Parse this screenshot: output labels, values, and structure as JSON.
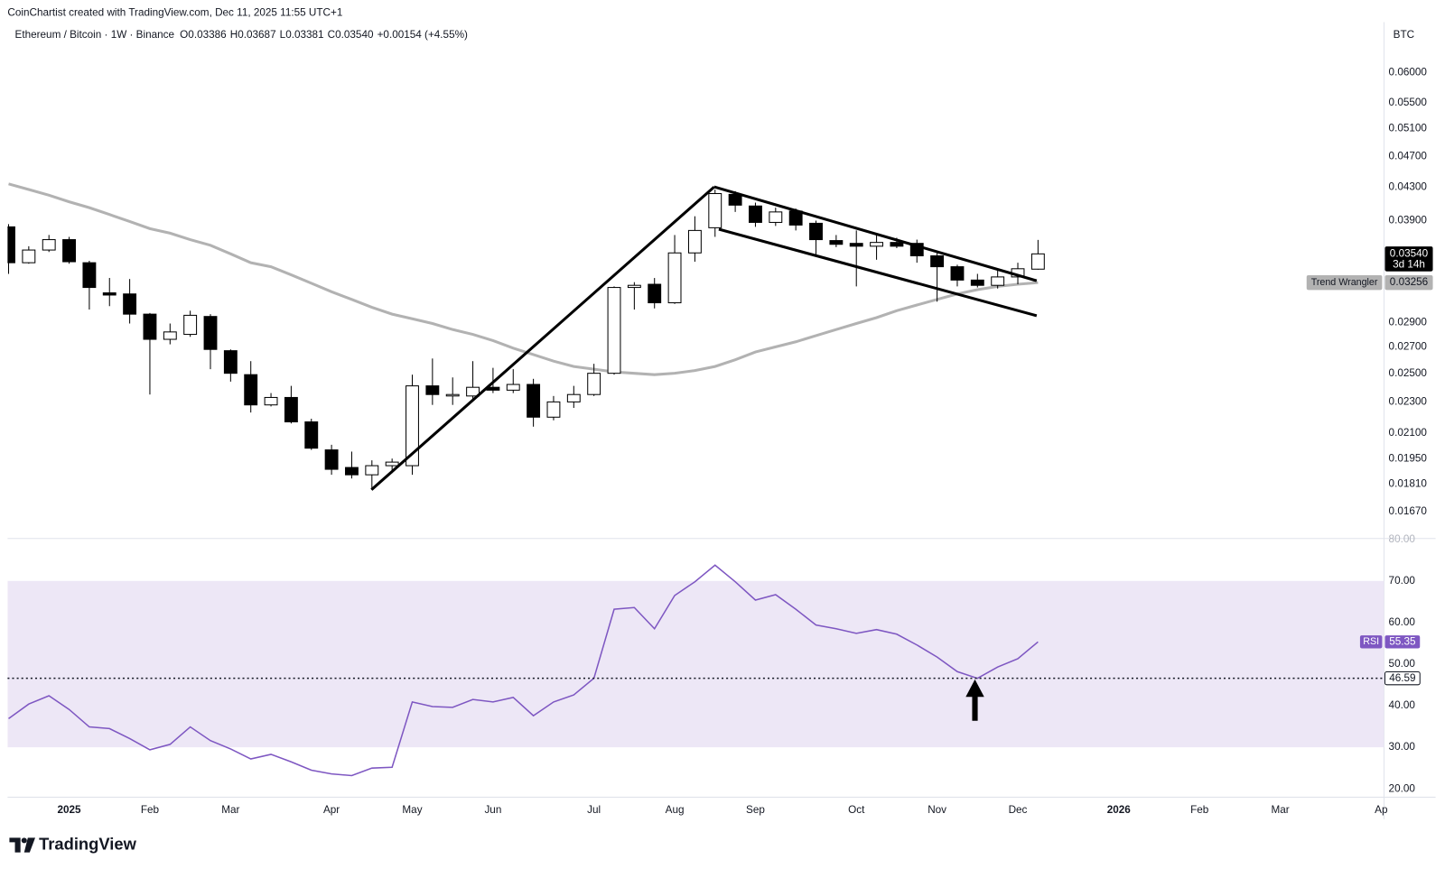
{
  "header": {
    "attribution": "CoinChartist created with TradingView.com, Dec 11, 2025 11:55 UTC+1"
  },
  "footer": {
    "brand": "TradingView"
  },
  "chart_data": [
    {
      "type": "candlestick",
      "title": "Ethereum / Bitcoin · 1W · Binance",
      "legend": [
        {
          "name": "O",
          "value": 0.03386
        },
        {
          "name": "H",
          "value": 0.03687
        },
        {
          "name": "L",
          "value": 0.03381
        },
        {
          "name": "C",
          "value": {
            "value": 0.0354,
            "label": "0.03540"
          }
        }
      ],
      "change_label": "+0.00154 (+4.55%)",
      "currency": "BTC",
      "log_scale": true,
      "grid": false,
      "up_color": "#ffffff",
      "down_color": "#000000",
      "border_color": "#000000",
      "open": [
        0.0383,
        0.0345,
        0.0358,
        0.0369,
        0.0345,
        0.0316,
        0.0315,
        0.0297,
        0.0276,
        0.028,
        0.0295,
        0.0267,
        0.0249,
        0.0228,
        0.0233,
        0.0217,
        0.02,
        0.019,
        0.0186,
        0.0191,
        0.0191,
        0.0241,
        0.0234,
        0.0234,
        0.024,
        0.0238,
        0.0242,
        0.022,
        0.023,
        0.0235,
        0.025,
        0.0321,
        0.0324,
        0.0307,
        0.0355,
        0.0382,
        0.0421,
        0.0407,
        0.0388,
        0.0401,
        0.0387,
        0.0368,
        0.0365,
        0.0362,
        0.0366,
        0.0365,
        0.0352,
        0.0341,
        0.0328,
        0.0323,
        0.0331,
        0.03386
      ],
      "high": [
        0.0386,
        0.0362,
        0.0374,
        0.0372,
        0.0347,
        0.033,
        0.0329,
        0.0298,
        0.0289,
        0.03,
        0.0297,
        0.0268,
        0.0259,
        0.0236,
        0.0241,
        0.0219,
        0.0203,
        0.0199,
        0.0194,
        0.0195,
        0.0249,
        0.0261,
        0.0247,
        0.0259,
        0.0254,
        0.0253,
        0.0246,
        0.0234,
        0.0241,
        0.0257,
        0.0322,
        0.0326,
        0.033,
        0.0374,
        0.0395,
        0.0427,
        0.0425,
        0.0411,
        0.0405,
        0.0404,
        0.039,
        0.0374,
        0.0379,
        0.0375,
        0.0371,
        0.0369,
        0.0355,
        0.0343,
        0.0334,
        0.0339,
        0.0345,
        0.03687
      ],
      "low": [
        0.0334,
        0.0344,
        0.0356,
        0.0344,
        0.0301,
        0.0304,
        0.0289,
        0.0235,
        0.0272,
        0.0278,
        0.0253,
        0.0244,
        0.0223,
        0.0227,
        0.0216,
        0.02,
        0.0186,
        0.0184,
        0.0178,
        0.0187,
        0.0186,
        0.0228,
        0.0228,
        0.0232,
        0.0236,
        0.0236,
        0.0214,
        0.0218,
        0.0226,
        0.0234,
        0.0249,
        0.0301,
        0.0302,
        0.0306,
        0.0346,
        0.0372,
        0.04,
        0.0383,
        0.0384,
        0.0379,
        0.0353,
        0.0361,
        0.0322,
        0.0348,
        0.036,
        0.0345,
        0.0308,
        0.0322,
        0.0321,
        0.032,
        0.0324,
        0.03381
      ],
      "close": [
        0.0345,
        0.0358,
        0.0369,
        0.0346,
        0.0321,
        0.0314,
        0.0297,
        0.0276,
        0.0282,
        0.0296,
        0.0268,
        0.025,
        0.0228,
        0.0233,
        0.0217,
        0.0201,
        0.0189,
        0.0186,
        0.0191,
        0.0193,
        0.0241,
        0.0235,
        0.0235,
        0.024,
        0.0238,
        0.0242,
        0.022,
        0.023,
        0.0235,
        0.025,
        0.0321,
        0.0323,
        0.0307,
        0.0355,
        0.0379,
        0.0422,
        0.0408,
        0.0388,
        0.04,
        0.0385,
        0.0369,
        0.0364,
        0.0362,
        0.0366,
        0.0362,
        0.0352,
        0.0341,
        0.0328,
        0.0323,
        0.0331,
        0.0339,
        0.0354
      ],
      "last_price": {
        "value": 0.0354,
        "label": "0.03540"
      },
      "countdown": "3d 14h",
      "overlays": [
        {
          "name": "Trend Wrangler",
          "color": "#b2b2b2",
          "values": [
            0.0434,
            0.0427,
            0.042,
            0.0412,
            0.0405,
            0.0397,
            0.0389,
            0.0381,
            0.0376,
            0.0369,
            0.0363,
            0.0354,
            0.0345,
            0.0341,
            0.0333,
            0.0325,
            0.0317,
            0.031,
            0.0303,
            0.0297,
            0.0293,
            0.0289,
            0.0284,
            0.028,
            0.0275,
            0.0269,
            0.0264,
            0.0259,
            0.0255,
            0.0253,
            0.0251,
            0.025,
            0.0249,
            0.025,
            0.0252,
            0.0255,
            0.026,
            0.0266,
            0.027,
            0.0274,
            0.0279,
            0.0284,
            0.0289,
            0.0294,
            0.03,
            0.0305,
            0.031,
            0.0315,
            0.0319,
            0.0322,
            0.0324,
            0.03256
          ]
        }
      ],
      "xlim": [
        -0.05,
        68.14
      ],
      "ylim": [
        0.01549,
        0.0688
      ],
      "yticks": [
        {
          "value": 0.06,
          "label": "0.06000"
        },
        {
          "value": 0.055,
          "label": "0.05500"
        },
        {
          "value": 0.051,
          "label": "0.05100"
        },
        {
          "value": 0.047,
          "label": "0.04700"
        },
        {
          "value": 0.043,
          "label": "0.04300"
        },
        {
          "value": 0.039,
          "label": "0.03900"
        },
        {
          "value": 0.029,
          "label": "0.02900"
        },
        {
          "value": 0.027,
          "label": "0.02700"
        },
        {
          "value": 0.025,
          "label": "0.02500"
        },
        {
          "value": 0.023,
          "label": "0.02300"
        },
        {
          "value": 0.021,
          "label": "0.02100"
        },
        {
          "value": 0.0195,
          "label": "0.01950"
        },
        {
          "value": 0.0181,
          "label": "0.01810"
        },
        {
          "value": 0.0167,
          "label": "0.01670"
        }
      ]
    },
    {
      "type": "line",
      "series": [
        {
          "name": "RSI",
          "color": "#7e57c2",
          "values": [
            36.9,
            40.4,
            42.4,
            39.1,
            34.9,
            34.5,
            32.1,
            29.4,
            30.7,
            34.9,
            31.6,
            29.6,
            27.2,
            28.3,
            26.5,
            24.5,
            23.6,
            23.2,
            25.0,
            25.2,
            40.9,
            39.8,
            39.6,
            41.5,
            40.9,
            42.0,
            37.6,
            40.9,
            42.6,
            46.6,
            63.2,
            63.6,
            58.5,
            66.5,
            69.8,
            73.8,
            69.8,
            65.4,
            66.7,
            63.2,
            59.4,
            58.5,
            57.4,
            58.3,
            57.2,
            54.6,
            51.7,
            48.2,
            46.59,
            49.3,
            51.3,
            55.35
          ]
        }
      ],
      "band": [
        30,
        70
      ],
      "band_color": "#ede7f6",
      "reference_line": 46.59,
      "xlim": [
        -0.05,
        68.14
      ],
      "ylim": [
        18,
        80.2
      ],
      "yticks": [
        {
          "value": 80,
          "label": "80.00"
        },
        {
          "value": 70,
          "label": "70.00"
        },
        {
          "value": 60,
          "label": "60.00"
        },
        {
          "value": 50,
          "label": "50.00"
        },
        {
          "value": 40,
          "label": "40.00"
        },
        {
          "value": 30,
          "label": "30.00"
        },
        {
          "value": 20,
          "label": "20.00"
        }
      ],
      "xticks": [
        {
          "value": 3,
          "label": "2025",
          "bold": true
        },
        {
          "value": 7,
          "label": "Feb"
        },
        {
          "value": 11,
          "label": "Mar"
        },
        {
          "value": 16,
          "label": "Apr"
        },
        {
          "value": 20,
          "label": "May"
        },
        {
          "value": 24,
          "label": "Jun"
        },
        {
          "value": 29,
          "label": "Jul"
        },
        {
          "value": 33,
          "label": "Aug"
        },
        {
          "value": 37,
          "label": "Sep"
        },
        {
          "value": 42,
          "label": "Oct"
        },
        {
          "value": 46,
          "label": "Nov"
        },
        {
          "value": 50,
          "label": "Dec"
        },
        {
          "value": 55,
          "label": "2026",
          "bold": true
        },
        {
          "value": 59,
          "label": "Feb"
        },
        {
          "value": 63,
          "label": "Mar"
        },
        {
          "value": 68,
          "label": "Ap"
        }
      ]
    }
  ]
}
